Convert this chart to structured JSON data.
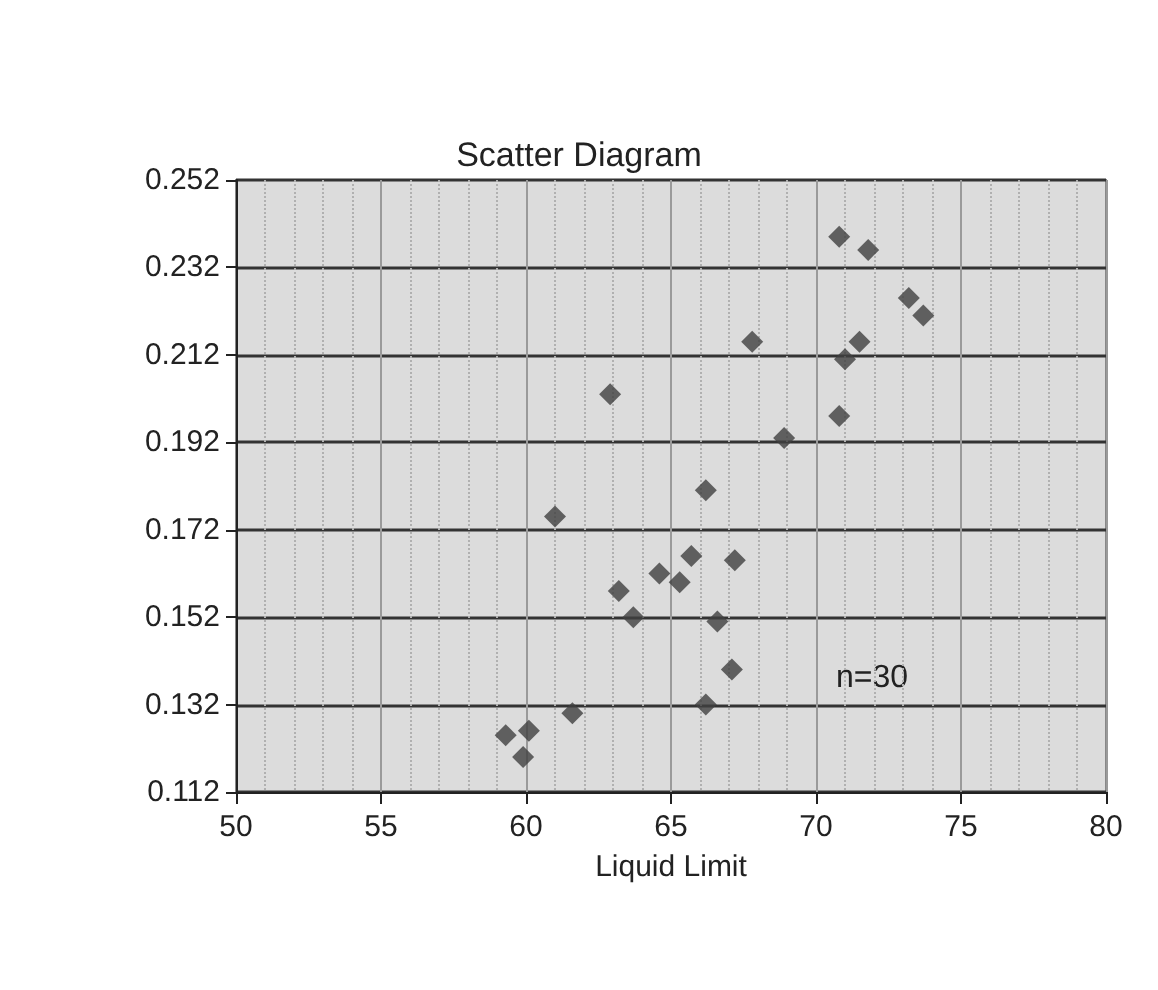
{
  "chart_data": {
    "type": "scatter",
    "title": "Scatter Diagram",
    "xlabel": "Liquid Limit",
    "annotations": [
      "n=30"
    ],
    "xlim": [
      50,
      80
    ],
    "xticks": [
      50,
      55,
      60,
      65,
      70,
      75,
      80
    ],
    "ylim": [
      0.112,
      0.252
    ],
    "yticks": [
      0.112,
      0.132,
      0.152,
      0.172,
      0.192,
      0.212,
      0.232,
      0.252
    ],
    "grid": true,
    "marker": "diamond",
    "series": [
      {
        "color": "#404040",
        "x": [
          70.8,
          71.8,
          73.2,
          73.7,
          71.5,
          71.0,
          67.8,
          62.9,
          70.8,
          68.9,
          66.2,
          61.0,
          65.7,
          67.2,
          64.6,
          65.3,
          63.2,
          63.7,
          66.6,
          67.1,
          66.2,
          61.6,
          59.3,
          60.1,
          59.9
        ],
        "values": [
          0.239,
          0.236,
          0.225,
          0.221,
          0.215,
          0.211,
          0.215,
          0.203,
          0.198,
          0.193,
          0.181,
          0.175,
          0.166,
          0.165,
          0.162,
          0.16,
          0.158,
          0.152,
          0.151,
          0.14,
          0.132,
          0.13,
          0.125,
          0.126,
          0.12
        ]
      }
    ]
  }
}
